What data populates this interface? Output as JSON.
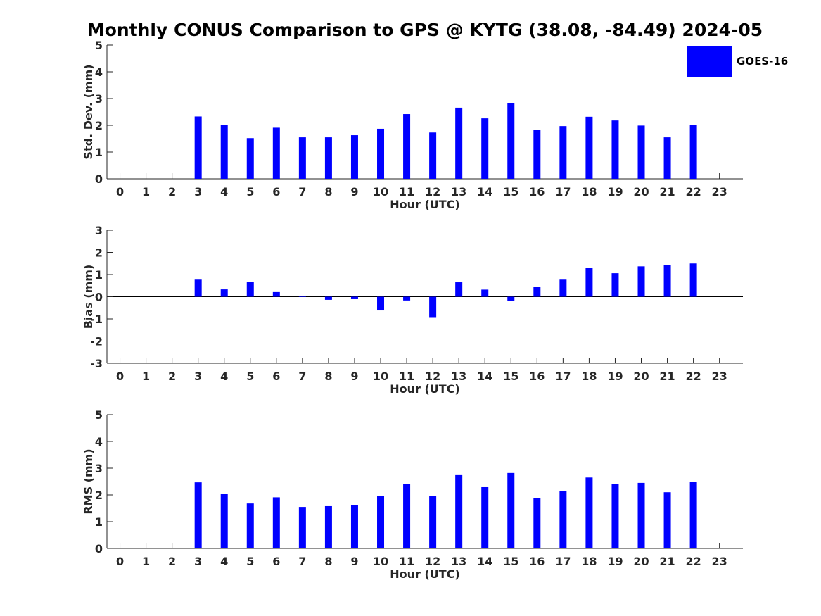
{
  "figure": {
    "title": "Monthly CONUS Comparison to GPS @ KYTG (38.08, -84.49) 2024-05"
  },
  "legend": {
    "label": "GOES-16",
    "color": "#0000ff"
  },
  "chart_data": [
    {
      "type": "bar",
      "ylabel": "Std. Dev. (mm)",
      "xlabel": "Hour (UTC)",
      "x": [
        0,
        1,
        2,
        3,
        4,
        5,
        6,
        7,
        8,
        9,
        10,
        11,
        12,
        13,
        14,
        15,
        16,
        17,
        18,
        19,
        20,
        21,
        22,
        23
      ],
      "xlim": [
        -0.5,
        23.9
      ],
      "ylim": [
        0,
        5
      ],
      "yticks": [
        0,
        1,
        2,
        3,
        4,
        5
      ],
      "series": [
        {
          "name": "GOES-16",
          "color": "#0000ff",
          "values": [
            null,
            null,
            null,
            2.33,
            2.02,
            1.52,
            1.91,
            1.55,
            1.55,
            1.63,
            1.87,
            2.42,
            1.73,
            2.66,
            2.26,
            2.82,
            1.83,
            1.97,
            2.32,
            2.18,
            1.99,
            1.55,
            2.0,
            null
          ]
        }
      ],
      "legend": "top-right",
      "grid": false
    },
    {
      "type": "bar",
      "ylabel": "Bias (mm)",
      "xlabel": "Hour (UTC)",
      "x": [
        0,
        1,
        2,
        3,
        4,
        5,
        6,
        7,
        8,
        9,
        10,
        11,
        12,
        13,
        14,
        15,
        16,
        17,
        18,
        19,
        20,
        21,
        22,
        23
      ],
      "xlim": [
        -0.5,
        23.9
      ],
      "ylim": [
        -3,
        3
      ],
      "yticks": [
        -3,
        -2,
        -1,
        0,
        1,
        2,
        3
      ],
      "zero_line": true,
      "series": [
        {
          "name": "GOES-16",
          "color": "#0000ff",
          "values": [
            null,
            null,
            null,
            0.77,
            0.33,
            0.67,
            0.21,
            0.02,
            -0.14,
            -0.11,
            -0.62,
            -0.17,
            -0.92,
            0.65,
            0.32,
            -0.18,
            0.45,
            0.77,
            1.31,
            1.06,
            1.37,
            1.43,
            1.5,
            null
          ]
        }
      ],
      "grid": false
    },
    {
      "type": "bar",
      "ylabel": "RMS (mm)",
      "xlabel": "Hour (UTC)",
      "x": [
        0,
        1,
        2,
        3,
        4,
        5,
        6,
        7,
        8,
        9,
        10,
        11,
        12,
        13,
        14,
        15,
        16,
        17,
        18,
        19,
        20,
        21,
        22,
        23
      ],
      "xlim": [
        -0.5,
        23.9
      ],
      "ylim": [
        0,
        5
      ],
      "yticks": [
        0,
        1,
        2,
        3,
        4,
        5
      ],
      "series": [
        {
          "name": "GOES-16",
          "color": "#0000ff",
          "values": [
            null,
            null,
            null,
            2.47,
            2.05,
            1.68,
            1.91,
            1.55,
            1.58,
            1.63,
            1.97,
            2.42,
            1.97,
            2.74,
            2.29,
            2.82,
            1.89,
            2.14,
            2.65,
            2.42,
            2.45,
            2.1,
            2.5,
            null
          ]
        }
      ],
      "grid": false
    }
  ]
}
